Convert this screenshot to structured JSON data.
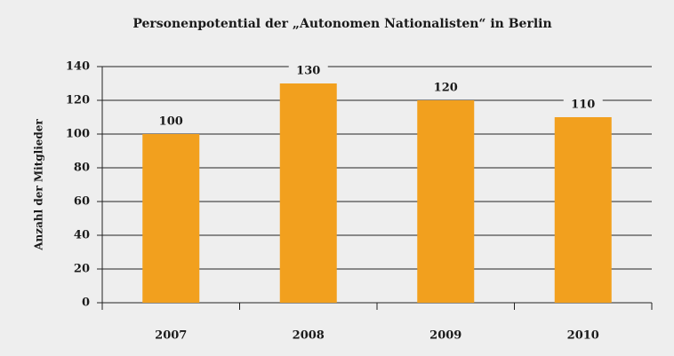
{
  "chart_data": {
    "type": "bar",
    "title": "Personenpotential der „Autonomen Nationalisten“ in Berlin",
    "y_label": "Anzahl der Mitglieder",
    "categories": [
      "2007",
      "2008",
      "2009",
      "2010"
    ],
    "values": [
      100,
      130,
      120,
      110
    ],
    "color": "#f2a01e",
    "ylim": [
      0,
      140
    ],
    "yticks": [
      0,
      20,
      40,
      60,
      80,
      100,
      120,
      140
    ],
    "grid": true
  }
}
